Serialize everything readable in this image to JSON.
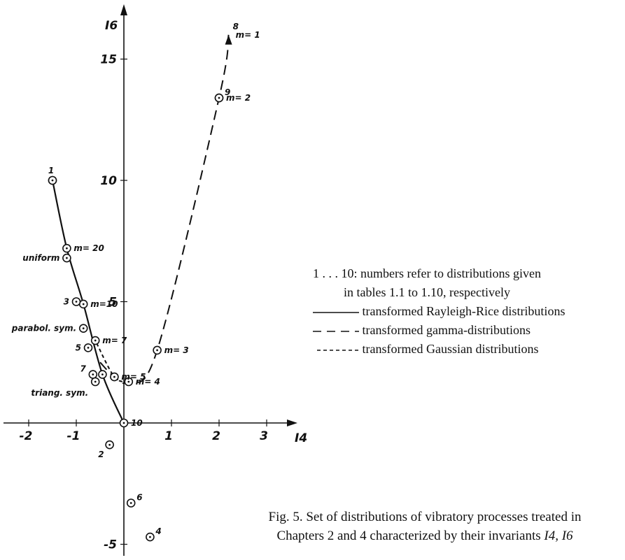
{
  "chart_data": {
    "type": "scatter",
    "xlabel": "I4",
    "ylabel": "I6",
    "xlim": [
      -2.5,
      3.5
    ],
    "ylim": [
      -5.5,
      16.5
    ],
    "x_ticks": [
      {
        "v": -2,
        "label": "-2"
      },
      {
        "v": -1,
        "label": "-1"
      },
      {
        "v": 1,
        "label": "1"
      },
      {
        "v": 2,
        "label": "2"
      },
      {
        "v": 3,
        "label": "3"
      }
    ],
    "y_ticks": [
      {
        "v": -5,
        "label": "-5"
      },
      {
        "v": 5,
        "label": "5"
      },
      {
        "v": 10,
        "label": "10"
      },
      {
        "v": 15,
        "label": "15"
      }
    ],
    "series": [
      {
        "name": "transformed Rayleigh-Rice distributions",
        "style": "solid",
        "points": [
          {
            "x": -1.5,
            "y": 10.0
          },
          {
            "x": -1.2,
            "y": 7.2,
            "label": "m= 20"
          },
          {
            "x": -0.85,
            "y": 4.9,
            "label": "m=10"
          },
          {
            "x": -0.45,
            "y": 2.0
          },
          {
            "x": 0.0,
            "y": 0.0,
            "label": "10"
          }
        ]
      },
      {
        "name": "transformed gamma-distributions",
        "style": "dashed",
        "points": [
          {
            "x": 0.1,
            "y": 1.7,
            "label": "m= 4"
          },
          {
            "x": 0.7,
            "y": 3.0,
            "label": "m= 3"
          },
          {
            "x": 2.0,
            "y": 13.4,
            "label": "m= 2"
          },
          {
            "x": 2.2,
            "y": 16.0,
            "label": "m= 1"
          }
        ]
      },
      {
        "name": "transformed Gaussian distributions",
        "style": "dotted",
        "points": [
          {
            "x": -0.2,
            "y": 1.9,
            "label": "m= 5"
          },
          {
            "x": -0.6,
            "y": 3.4,
            "label": "m= 7"
          }
        ]
      }
    ],
    "points": [
      {
        "label": "1",
        "x": -1.5,
        "y": 10.0
      },
      {
        "label": "uniform",
        "x": -1.2,
        "y": 6.8
      },
      {
        "label": "3",
        "x": -1.0,
        "y": 5.0
      },
      {
        "label": "parabol. sym.",
        "x": -0.85,
        "y": 3.9
      },
      {
        "label": "5",
        "x": -0.75,
        "y": 3.1
      },
      {
        "label": "7",
        "x": -0.65,
        "y": 2.0
      },
      {
        "label": "triang. sym.",
        "x": -0.6,
        "y": 1.7
      },
      {
        "label": "2",
        "x": -0.3,
        "y": -0.9
      },
      {
        "label": "6",
        "x": 0.15,
        "y": -3.3
      },
      {
        "label": "4",
        "x": 0.55,
        "y": -4.7
      },
      {
        "label": "9",
        "x": 2.0,
        "y": 13.4
      },
      {
        "label": "8",
        "x": 2.2,
        "y": 16.0
      }
    ]
  },
  "legend": {
    "note_line1": "1 . . . 10: numbers refer to distributions given",
    "note_line2": "in tables 1.1 to 1.10, respectively",
    "items": [
      {
        "style": "solid",
        "label": "transformed Rayleigh-Rice distributions"
      },
      {
        "style": "dashed",
        "label": "transformed gamma-distributions"
      },
      {
        "style": "dotted",
        "label": "transformed Gaussian distributions"
      }
    ]
  },
  "caption": {
    "line1": "Fig. 5. Set of distributions of vibratory processes treated in",
    "line2": "Chapters 2 and 4 characterized by their invariants",
    "line2_symbols": "I4, I6"
  }
}
